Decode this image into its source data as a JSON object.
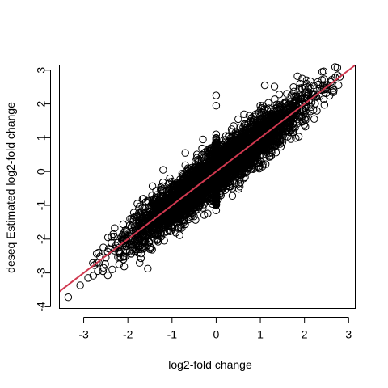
{
  "chart_data": {
    "type": "scatter",
    "title": "",
    "xlabel": "log2-fold change",
    "ylabel": "deseq Estimated log2-fold change",
    "xlim": [
      -3.55,
      3.15
    ],
    "ylim": [
      -4.05,
      3.15
    ],
    "grid": false,
    "x_ticks": [
      -3,
      -2,
      -1,
      0,
      1,
      2,
      3
    ],
    "x_tick_labels": [
      "-3",
      "-2",
      "-1",
      "0",
      "1",
      "2",
      "3"
    ],
    "y_ticks": [
      -4,
      -3,
      -2,
      -1,
      0,
      1,
      2,
      3
    ],
    "y_tick_labels": [
      "-4",
      "-3",
      "-2",
      "-1",
      "0",
      "1",
      "2",
      "3"
    ],
    "marker": "open-circle",
    "point_color": "#000000",
    "point_count_approx": 5000,
    "point_cloud": {
      "description_of_trend": "dense elongated cloud along y = x",
      "correlation_spread_sd": 0.32,
      "x_range": [
        -3.35,
        2.8
      ],
      "vertical_column_at_x": 0,
      "vertical_column_y_range": [
        -1.0,
        1.0
      ]
    },
    "series": [
      {
        "name": "",
        "points": [
          {
            "x": -3.35,
            "y": -3.72
          },
          {
            "x": -2.9,
            "y": -3.15
          },
          {
            "x": -2.7,
            "y": -2.7
          },
          {
            "x": -2.55,
            "y": -2.85
          },
          {
            "x": -2.5,
            "y": -2.55
          },
          {
            "x": -2.45,
            "y": -1.95
          },
          {
            "x": -2.1,
            "y": -2.6
          },
          {
            "x": -2.05,
            "y": -2.2
          },
          {
            "x": -1.95,
            "y": -1.4
          },
          {
            "x": -1.5,
            "y": -2.3
          },
          {
            "x": -1.6,
            "y": -1.25
          },
          {
            "x": -1.2,
            "y": -0.95
          },
          {
            "x": -1.05,
            "y": -0.2
          },
          {
            "x": -1.2,
            "y": 0.05
          },
          {
            "x": -0.7,
            "y": 0.55
          },
          {
            "x": -0.5,
            "y": -0.9
          },
          {
            "x": -0.3,
            "y": 0.95
          },
          {
            "x": -0.1,
            "y": 0.5
          },
          {
            "x": 0.0,
            "y": 2.25
          },
          {
            "x": 0.0,
            "y": 1.95
          },
          {
            "x": 0.0,
            "y": 1.1
          },
          {
            "x": 0.0,
            "y": -1.15
          },
          {
            "x": 0.0,
            "y": -0.9
          },
          {
            "x": 0.3,
            "y": -0.45
          },
          {
            "x": 0.45,
            "y": -0.35
          },
          {
            "x": 0.5,
            "y": 1.55
          },
          {
            "x": 0.75,
            "y": 1.65
          },
          {
            "x": 0.9,
            "y": 1.7
          },
          {
            "x": 1.0,
            "y": 1.95
          },
          {
            "x": 1.05,
            "y": 0.15
          },
          {
            "x": 1.1,
            "y": 2.55
          },
          {
            "x": 1.25,
            "y": 1.0
          },
          {
            "x": 1.45,
            "y": 1.5
          },
          {
            "x": 1.6,
            "y": 2.3
          },
          {
            "x": 1.7,
            "y": 2.25
          },
          {
            "x": 1.95,
            "y": 2.75
          },
          {
            "x": 2.05,
            "y": 2.7
          },
          {
            "x": 2.1,
            "y": 2.35
          },
          {
            "x": 2.3,
            "y": 2.65
          },
          {
            "x": 2.35,
            "y": 2.45
          },
          {
            "x": 2.4,
            "y": 2.95
          },
          {
            "x": 2.5,
            "y": 2.55
          },
          {
            "x": 2.6,
            "y": 2.65
          },
          {
            "x": 2.75,
            "y": 2.85
          },
          {
            "x": 2.8,
            "y": 2.8
          }
        ]
      }
    ],
    "reference_line": {
      "type": "identity",
      "slope": 1,
      "intercept": 0,
      "color": "#d0384f"
    }
  }
}
